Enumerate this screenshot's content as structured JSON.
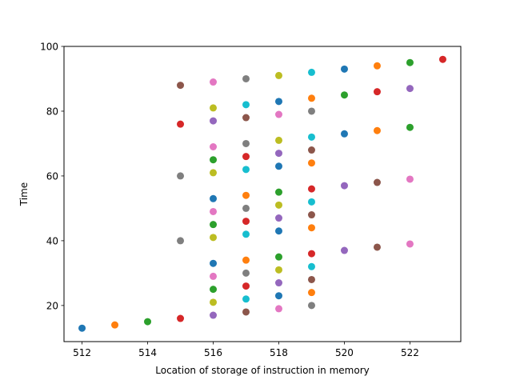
{
  "chart_data": {
    "type": "scatter",
    "title": "",
    "xlabel": "Location of storage of instruction in memory",
    "ylabel": "Time",
    "xlim": [
      511.45,
      523.55
    ],
    "ylim": [
      8.85,
      100
    ],
    "xticks": [
      512,
      514,
      516,
      518,
      520,
      522
    ],
    "yticks": [
      20,
      40,
      60,
      80,
      100
    ],
    "grid": false,
    "legend": "none",
    "color_cycle": [
      "#1f77b4",
      "#ff7f0e",
      "#2ca02c",
      "#d62728",
      "#9467bd",
      "#8c564b",
      "#e377c2",
      "#7f7f7f",
      "#bcbd22",
      "#17becf"
    ],
    "points": [
      {
        "x": 512,
        "y": 13
      },
      {
        "x": 513,
        "y": 14
      },
      {
        "x": 514,
        "y": 15
      },
      {
        "x": 515,
        "y": 16
      },
      {
        "x": 516,
        "y": 17
      },
      {
        "x": 517,
        "y": 18
      },
      {
        "x": 518,
        "y": 19
      },
      {
        "x": 519,
        "y": 20
      },
      {
        "x": 516,
        "y": 21
      },
      {
        "x": 517,
        "y": 22
      },
      {
        "x": 518,
        "y": 23
      },
      {
        "x": 519,
        "y": 24
      },
      {
        "x": 516,
        "y": 25
      },
      {
        "x": 517,
        "y": 26
      },
      {
        "x": 518,
        "y": 27
      },
      {
        "x": 519,
        "y": 28
      },
      {
        "x": 516,
        "y": 29
      },
      {
        "x": 517,
        "y": 30
      },
      {
        "x": 518,
        "y": 31
      },
      {
        "x": 519,
        "y": 32
      },
      {
        "x": 516,
        "y": 33
      },
      {
        "x": 517,
        "y": 34
      },
      {
        "x": 518,
        "y": 35
      },
      {
        "x": 519,
        "y": 36
      },
      {
        "x": 520,
        "y": 37
      },
      {
        "x": 521,
        "y": 38
      },
      {
        "x": 522,
        "y": 39
      },
      {
        "x": 515,
        "y": 40
      },
      {
        "x": 516,
        "y": 41
      },
      {
        "x": 517,
        "y": 42
      },
      {
        "x": 518,
        "y": 43
      },
      {
        "x": 519,
        "y": 44
      },
      {
        "x": 516,
        "y": 45
      },
      {
        "x": 517,
        "y": 46
      },
      {
        "x": 518,
        "y": 47
      },
      {
        "x": 519,
        "y": 48
      },
      {
        "x": 516,
        "y": 49
      },
      {
        "x": 517,
        "y": 50
      },
      {
        "x": 518,
        "y": 51
      },
      {
        "x": 519,
        "y": 52
      },
      {
        "x": 516,
        "y": 53
      },
      {
        "x": 517,
        "y": 54
      },
      {
        "x": 518,
        "y": 55
      },
      {
        "x": 519,
        "y": 56
      },
      {
        "x": 520,
        "y": 57
      },
      {
        "x": 521,
        "y": 58
      },
      {
        "x": 522,
        "y": 59
      },
      {
        "x": 515,
        "y": 60
      },
      {
        "x": 516,
        "y": 61
      },
      {
        "x": 517,
        "y": 62
      },
      {
        "x": 518,
        "y": 63
      },
      {
        "x": 519,
        "y": 64
      },
      {
        "x": 516,
        "y": 65
      },
      {
        "x": 517,
        "y": 66
      },
      {
        "x": 518,
        "y": 67
      },
      {
        "x": 519,
        "y": 68
      },
      {
        "x": 516,
        "y": 69
      },
      {
        "x": 517,
        "y": 70
      },
      {
        "x": 518,
        "y": 71
      },
      {
        "x": 519,
        "y": 72
      },
      {
        "x": 520,
        "y": 73
      },
      {
        "x": 521,
        "y": 74
      },
      {
        "x": 522,
        "y": 75
      },
      {
        "x": 515,
        "y": 76
      },
      {
        "x": 516,
        "y": 77
      },
      {
        "x": 517,
        "y": 78
      },
      {
        "x": 518,
        "y": 79
      },
      {
        "x": 519,
        "y": 80
      },
      {
        "x": 516,
        "y": 81
      },
      {
        "x": 517,
        "y": 82
      },
      {
        "x": 518,
        "y": 83
      },
      {
        "x": 519,
        "y": 84
      },
      {
        "x": 520,
        "y": 85
      },
      {
        "x": 521,
        "y": 86
      },
      {
        "x": 522,
        "y": 87
      },
      {
        "x": 515,
        "y": 88
      },
      {
        "x": 516,
        "y": 89
      },
      {
        "x": 517,
        "y": 90
      },
      {
        "x": 518,
        "y": 91
      },
      {
        "x": 519,
        "y": 92
      },
      {
        "x": 520,
        "y": 93
      },
      {
        "x": 521,
        "y": 94
      },
      {
        "x": 522,
        "y": 95
      },
      {
        "x": 523,
        "y": 96
      }
    ]
  }
}
